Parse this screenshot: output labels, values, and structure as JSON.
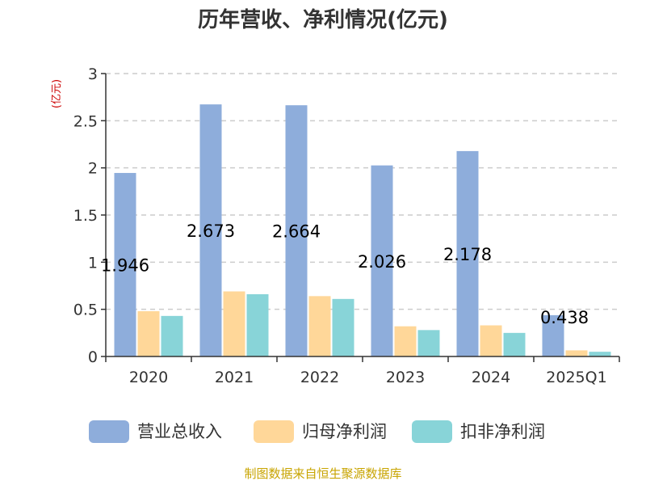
{
  "chart_data": {
    "type": "bar",
    "title": "历年营收、净利情况(亿元)",
    "ylabel": "(亿元)",
    "xlabel": "",
    "categories": [
      "2020",
      "2021",
      "2022",
      "2023",
      "2024",
      "2025Q1"
    ],
    "ylim": [
      0,
      3
    ],
    "yticks": [
      "0",
      "0.5",
      "1",
      "1.5",
      "2",
      "2.5",
      "3"
    ],
    "grid": true,
    "legend_position": "bottom",
    "series": [
      {
        "name": "营业总收入",
        "color": "#8eaddb",
        "values": [
          1.946,
          2.673,
          2.664,
          2.026,
          2.178,
          0.438
        ]
      },
      {
        "name": "归母净利润",
        "color": "#ffd799",
        "values": [
          0.48,
          0.69,
          0.64,
          0.32,
          0.33,
          0.065
        ]
      },
      {
        "name": "扣非净利润",
        "color": "#88d4d8",
        "values": [
          0.43,
          0.66,
          0.61,
          0.28,
          0.25,
          0.05
        ]
      }
    ],
    "data_labels": [
      "1.946",
      "2.673",
      "2.664",
      "2.026",
      "2.178",
      "0.438"
    ]
  },
  "source": "制图数据来自恒生聚源数据库"
}
